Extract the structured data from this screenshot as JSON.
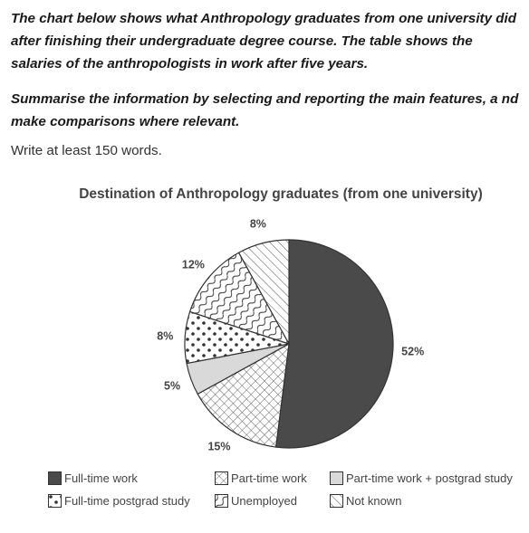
{
  "prompt": {
    "paragraph1": "The chart below shows what Anthropology graduates from one university did after finishing their undergraduate degree course. The table shows the salaries of the anthropologists in work after five years.",
    "paragraph2": "Summarise the information by selecting and reporting the main features, a nd make comparisons where relevant.",
    "word_count": "Write at least 150 words."
  },
  "chart_data": {
    "type": "pie",
    "title": "Destination of Anthropology graduates (from one university)",
    "unit": "%",
    "slices": [
      {
        "label": "Full-time work",
        "value": 52,
        "value_label": "52%",
        "pattern": "solid-dark"
      },
      {
        "label": "Part-time work",
        "value": 15,
        "value_label": "15%",
        "pattern": "crosshatch"
      },
      {
        "label": "Part-time work + postgrad study",
        "value": 5,
        "value_label": "5%",
        "pattern": "light-grey"
      },
      {
        "label": "Full-time postgrad study",
        "value": 8,
        "value_label": "8%",
        "pattern": "dots"
      },
      {
        "label": "Unemployed",
        "value": 12,
        "value_label": "12%",
        "pattern": "wavy"
      },
      {
        "label": "Not known",
        "value": 8,
        "value_label": "8%",
        "pattern": "diagonal"
      }
    ],
    "legend_placement": "bottom",
    "legend_order": [
      "Full-time work",
      "Part-time work",
      "Part-time work + postgrad study",
      "Full-time postgrad study",
      "Unemployed",
      "Not known"
    ],
    "colors": {
      "dark": "#4a4a4a",
      "light_grey": "#d9d9d9",
      "outline": "#333333"
    }
  }
}
